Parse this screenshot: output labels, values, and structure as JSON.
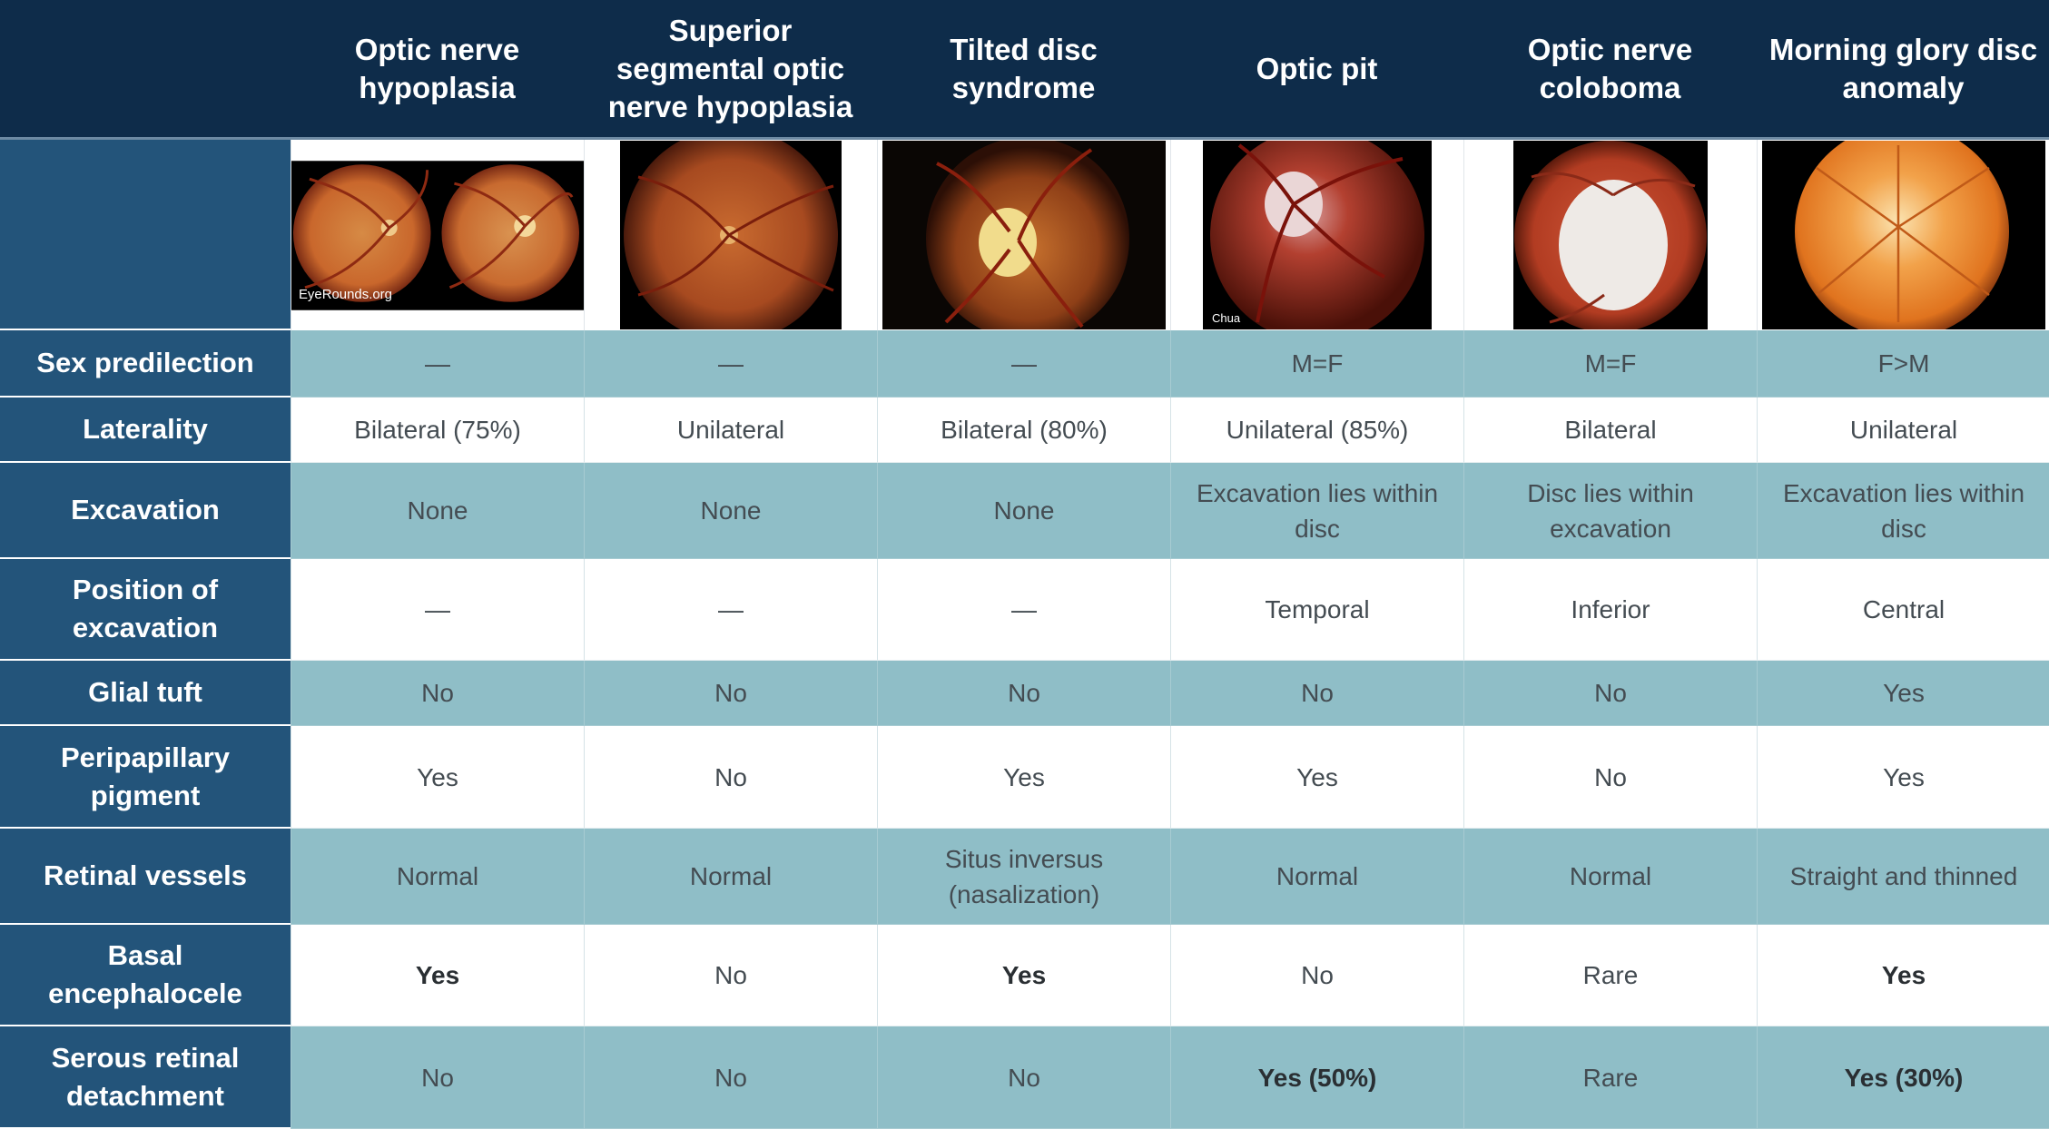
{
  "corner_label": "",
  "columns": [
    "Optic nerve hypoplasia",
    "Superior segmental optic nerve hypoplasia",
    "Tilted disc syndrome",
    "Optic pit",
    "Optic nerve coloboma",
    "Morning glory disc anomaly"
  ],
  "image_captions": {
    "col1_watermark": "EyeRounds.org",
    "col4_credit": "Chua"
  },
  "rows": [
    {
      "label": "Sex predilection",
      "cells": [
        "—",
        "—",
        "—",
        "M=F",
        "M=F",
        "F>M"
      ],
      "bold": [
        false,
        false,
        false,
        false,
        false,
        false
      ]
    },
    {
      "label": "Laterality",
      "cells": [
        "Bilateral (75%)",
        "Unilateral",
        "Bilateral (80%)",
        "Unilateral (85%)",
        "Bilateral",
        "Unilateral"
      ],
      "bold": [
        false,
        false,
        false,
        false,
        false,
        false
      ]
    },
    {
      "label": "Excavation",
      "cells": [
        "None",
        "None",
        "None",
        "Excavation lies within disc",
        "Disc lies within excavation",
        "Excavation lies within disc"
      ],
      "bold": [
        false,
        false,
        false,
        false,
        false,
        false
      ]
    },
    {
      "label": "Position of excavation",
      "cells": [
        "—",
        "—",
        "—",
        "Temporal",
        "Inferior",
        "Central"
      ],
      "bold": [
        false,
        false,
        false,
        false,
        false,
        false
      ]
    },
    {
      "label": "Glial tuft",
      "cells": [
        "No",
        "No",
        "No",
        "No",
        "No",
        "Yes"
      ],
      "bold": [
        false,
        false,
        false,
        false,
        false,
        false
      ]
    },
    {
      "label": "Peripapillary pigment",
      "cells": [
        "Yes",
        "No",
        "Yes",
        "Yes",
        "No",
        "Yes"
      ],
      "bold": [
        false,
        false,
        false,
        false,
        false,
        false
      ]
    },
    {
      "label": "Retinal vessels",
      "cells": [
        "Normal",
        "Normal",
        "Situs inversus (nasalization)",
        "Normal",
        "Normal",
        "Straight and thinned"
      ],
      "bold": [
        false,
        false,
        false,
        false,
        false,
        false
      ]
    },
    {
      "label": "Basal encephalocele",
      "cells": [
        "Yes",
        "No",
        "Yes",
        "No",
        "Rare",
        "Yes"
      ],
      "bold": [
        true,
        false,
        true,
        false,
        false,
        true
      ]
    },
    {
      "label": "Serous retinal detachment",
      "cells": [
        "No",
        "No",
        "No",
        "Yes (50%)",
        "Rare",
        "Yes (30%)"
      ],
      "bold": [
        false,
        false,
        false,
        true,
        false,
        true
      ]
    }
  ],
  "colors": {
    "header_bg": "#0e2c4a",
    "row_label_bg": "#23547a",
    "teal_row_bg": "#8fbec7",
    "white_row_bg": "#ffffff"
  }
}
